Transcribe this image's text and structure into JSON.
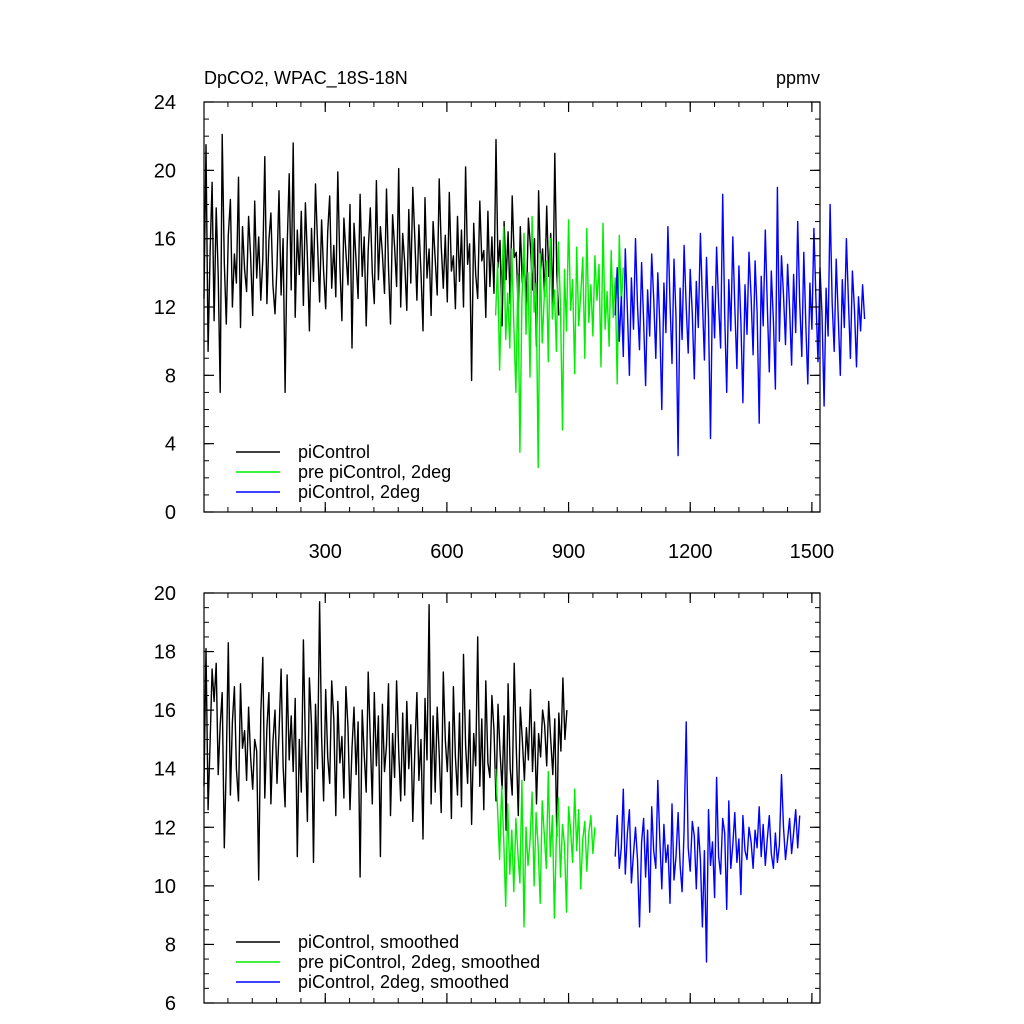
{
  "figure": {
    "title_left": "DpCO2, WPAC_18S-18N",
    "title_right": "ppmv"
  },
  "chart_data": [
    {
      "type": "line",
      "title": "DpCO2, WPAC_18S-18N",
      "units": "ppmv",
      "xlim": [
        1,
        1520
      ],
      "ylim": [
        0,
        24
      ],
      "x_ticks": [
        300,
        600,
        900,
        1200,
        1500
      ],
      "x_tick_labels": [
        "300",
        "600",
        "900",
        "1200",
        "1500"
      ],
      "y_ticks": [
        0,
        4,
        8,
        12,
        16,
        20,
        24
      ],
      "y_tick_labels": [
        "0",
        "4",
        "8",
        "12",
        "16",
        "20",
        "24"
      ],
      "legend_position": "bottom-left",
      "series": [
        {
          "name": "piControl",
          "color": "#000000",
          "x_start": 1,
          "x_step": 5,
          "values": [
            12.5,
            21.5,
            9.4,
            15.2,
            19.3,
            11.2,
            17.8,
            13.9,
            7.0,
            22.1,
            14.6,
            11.0,
            16.2,
            18.3,
            12.0,
            15.1,
            13.4,
            19.6,
            10.8,
            16.7,
            14.2,
            12.9,
            17.3,
            15.0,
            11.5,
            18.2,
            13.7,
            16.1,
            12.4,
            14.8,
            20.8,
            12.2,
            15.9,
            17.5,
            13.3,
            11.6,
            14.4,
            18.8,
            12.7,
            16.0,
            7.0,
            15.4,
            19.8,
            13.0,
            21.6,
            11.4,
            16.5,
            13.9,
            17.6,
            12.1,
            18.1,
            14.9,
            10.6,
            16.6,
            13.5,
            19.2,
            15.8,
            12.3,
            17.1,
            14.1,
            11.9,
            16.4,
            18.5,
            13.1,
            15.6,
            12.6,
            19.9,
            14.4,
            11.2,
            17.2,
            15.2,
            13.3,
            18.0,
            9.6,
            16.9,
            14.7,
            12.5,
            18.6,
            13.8,
            16.1,
            10.9,
            15.3,
            17.8,
            14.0,
            12.2,
            19.4,
            13.6,
            16.7,
            15.1,
            12.8,
            18.9,
            14.3,
            11.0,
            17.4,
            15.5,
            13.2,
            20.1,
            12.0,
            16.3,
            14.6,
            11.8,
            17.7,
            13.4,
            19.0,
            15.9,
            12.4,
            16.8,
            14.0,
            10.6,
            18.4,
            13.7,
            15.4,
            11.5,
            17.0,
            14.8,
            12.7,
            19.5,
            15.6,
            13.1,
            16.2,
            12.3,
            18.7,
            14.1,
            15.0,
            11.9,
            17.3,
            13.5,
            16.5,
            12.0,
            20.2,
            14.5,
            15.7,
            7.7,
            16.9,
            13.9,
            12.5,
            18.2,
            14.7,
            15.3,
            11.4,
            17.6,
            13.2,
            16.1,
            12.8,
            21.8,
            14.3,
            15.9,
            10.9,
            17.0,
            13.6,
            16.4,
            12.2,
            18.5,
            14.9,
            15.2,
            11.7,
            16.7,
            13.4,
            14.6,
            12.1,
            17.2,
            15.5,
            13.0,
            16.0,
            9.7,
            18.8,
            14.2,
            15.4,
            12.6,
            17.9,
            13.8,
            16.3,
            12.0,
            21.0,
            14.0,
            11.5
          ]
        },
        {
          "name": "pre piControl, 2deg",
          "color": "#00ee00",
          "x_start": 720,
          "x_step": 5,
          "values": [
            11.5,
            14.6,
            8.3,
            13.2,
            16.7,
            10.1,
            12.8,
            9.6,
            15.4,
            11.0,
            7.0,
            13.9,
            3.5,
            12.3,
            16.3,
            10.4,
            14.0,
            7.9,
            17.3,
            11.7,
            13.4,
            2.6,
            15.1,
            9.9,
            12.5,
            14.7,
            8.8,
            16.0,
            11.3,
            13.0,
            9.4,
            15.8,
            12.0,
            4.8,
            14.2,
            10.6,
            17.1,
            11.8,
            13.6,
            8.1,
            15.5,
            10.9,
            12.7,
            14.9,
            9.0,
            16.6,
            11.1,
            13.3,
            10.3,
            15.0,
            12.4,
            14.5,
            8.5,
            16.9,
            10.7,
            12.9,
            9.7,
            15.3,
            11.4,
            13.7,
            7.5,
            16.2,
            12.2,
            14.3
          ]
        },
        {
          "name": "piControl, 2deg",
          "color": "#0000ff",
          "x_start": 1015,
          "x_step": 5,
          "values": [
            11.5,
            14.3,
            10.0,
            12.6,
            9.1,
            15.4,
            11.8,
            8.0,
            13.7,
            10.7,
            16.0,
            12.1,
            9.5,
            14.6,
            11.2,
            7.4,
            13.0,
            10.3,
            15.1,
            12.5,
            9.0,
            14.0,
            11.0,
            6.0,
            13.4,
            10.5,
            16.7,
            12.3,
            8.7,
            14.8,
            11.4,
            3.3,
            13.1,
            10.1,
            15.6,
            12.0,
            9.3,
            14.2,
            11.6,
            7.8,
            13.5,
            10.8,
            16.3,
            12.4,
            8.9,
            14.9,
            11.3,
            4.3,
            13.2,
            10.2,
            15.5,
            12.2,
            9.6,
            18.6,
            11.5,
            7.0,
            13.6,
            10.6,
            16.1,
            12.0,
            8.4,
            14.4,
            11.1,
            6.4,
            13.3,
            10.4,
            15.2,
            12.6,
            9.2,
            14.7,
            11.7,
            5.2,
            13.8,
            10.9,
            16.5,
            12.1,
            8.2,
            14.1,
            11.2,
            7.2,
            19.0,
            10.0,
            15.0,
            12.7,
            9.8,
            14.5,
            11.9,
            8.6,
            13.9,
            10.5,
            17.0,
            12.3,
            9.1,
            15.2,
            11.0,
            7.5,
            13.4,
            10.7,
            16.6,
            12.5,
            8.8,
            14.3,
            11.6,
            6.2,
            13.1,
            10.3,
            18.0,
            12.2,
            9.4,
            14.8,
            11.5,
            8.0,
            13.6,
            10.8,
            16.0,
            12.4,
            9.0,
            14.1,
            11.8,
            8.5,
            12.6,
            10.6,
            13.3,
            11.3
          ]
        }
      ]
    },
    {
      "type": "line",
      "xlim": [
        1,
        1520
      ],
      "ylim": [
        6,
        20
      ],
      "x_ticks": [
        300,
        600,
        900,
        1200,
        1500
      ],
      "y_ticks": [
        6,
        8,
        10,
        12,
        14,
        16,
        18,
        20
      ],
      "y_tick_labels": [
        "6",
        "8",
        "10",
        "12",
        "14",
        "16",
        "18",
        "20"
      ],
      "legend_position": "bottom-left",
      "series": [
        {
          "name": "piControl, smoothed",
          "color": "#000000",
          "x_start": 1,
          "x_step": 5,
          "values": [
            13.4,
            18.1,
            12.6,
            14.9,
            17.4,
            16.3,
            17.6,
            13.8,
            15.5,
            16.6,
            11.3,
            14.2,
            18.3,
            13.1,
            15.6,
            16.8,
            14.0,
            12.9,
            16.9,
            14.7,
            15.3,
            13.6,
            16.1,
            14.4,
            13.3,
            15.0,
            14.6,
            10.2,
            15.9,
            17.8,
            13.0,
            15.4,
            16.6,
            12.8,
            14.9,
            16.0,
            13.5,
            15.2,
            17.4,
            14.1,
            12.7,
            17.2,
            14.3,
            15.8,
            13.9,
            16.4,
            11.0,
            15.0,
            13.2,
            18.4,
            14.8,
            12.2,
            17.1,
            15.5,
            10.8,
            16.2,
            14.0,
            19.7,
            15.1,
            12.9,
            16.7,
            14.4,
            13.5,
            17.0,
            15.7,
            12.4,
            16.3,
            14.2,
            15.1,
            13.0,
            16.8,
            15.4,
            12.6,
            14.7,
            16.1,
            13.8,
            15.6,
            10.3,
            16.0,
            14.5,
            13.2,
            17.3,
            15.0,
            12.8,
            16.6,
            14.1,
            15.8,
            11.0,
            16.2,
            13.9,
            14.8,
            16.9,
            12.4,
            15.2,
            13.7,
            17.0,
            14.6,
            12.9,
            15.9,
            13.1,
            16.3,
            14.0,
            15.5,
            12.2,
            14.7,
            16.6,
            13.6,
            15.0,
            11.6,
            16.4,
            14.3,
            19.6,
            12.8,
            15.8,
            13.2,
            16.1,
            14.5,
            12.5,
            17.3,
            15.0,
            13.9,
            15.6,
            12.3,
            16.8,
            14.4,
            13.1,
            15.9,
            12.7,
            17.9,
            14.8,
            13.5,
            16.0,
            12.1,
            15.2,
            14.1,
            18.5,
            13.4,
            15.7,
            12.6,
            17.0,
            14.2,
            13.7,
            16.5,
            15.3,
            12.9,
            16.2,
            14.6,
            13.3,
            15.8,
            11.9,
            16.9,
            14.0,
            13.1,
            17.6,
            14.7,
            12.4,
            16.1,
            15.0,
            13.6,
            15.4,
            14.3,
            16.7,
            13.9,
            15.6,
            12.8,
            15.2,
            14.4,
            16.0,
            15.5,
            14.1,
            16.3,
            15.0,
            13.8,
            15.7,
            11.7,
            15.9,
            14.6,
            17.1,
            15.0,
            16.0
          ]
        },
        {
          "name": "pre piControl, 2deg, smoothed",
          "color": "#00ee00",
          "x_start": 720,
          "x_step": 5,
          "values": [
            14.0,
            12.6,
            10.9,
            13.4,
            11.6,
            9.3,
            12.8,
            10.4,
            11.9,
            9.8,
            12.3,
            11.1,
            10.1,
            13.6,
            8.6,
            12.0,
            10.7,
            11.5,
            13.2,
            10.0,
            12.5,
            11.3,
            9.4,
            12.9,
            11.8,
            10.6,
            13.9,
            11.0,
            12.4,
            8.9,
            11.7,
            13.0,
            10.3,
            12.1,
            11.4,
            9.1,
            12.7,
            11.9,
            10.8,
            13.3,
            11.2,
            12.6,
            9.9,
            11.6,
            12.2,
            10.5,
            11.8,
            12.4,
            11.1,
            12.0
          ]
        },
        {
          "name": "piControl, 2deg, smoothed",
          "color": "#0000ff",
          "x_start": 1015,
          "x_step": 5,
          "values": [
            11.0,
            12.4,
            10.6,
            11.3,
            13.3,
            10.4,
            11.8,
            12.6,
            10.1,
            11.1,
            12.0,
            10.9,
            8.6,
            11.5,
            12.3,
            10.3,
            11.9,
            9.1,
            12.7,
            11.2,
            10.6,
            13.6,
            11.6,
            9.9,
            12.1,
            10.8,
            11.4,
            9.4,
            12.8,
            10.2,
            11.0,
            12.5,
            10.7,
            9.8,
            11.9,
            15.6,
            11.3,
            10.5,
            12.2,
            11.7,
            9.9,
            12.0,
            10.9,
            8.6,
            11.2,
            7.4,
            12.6,
            10.7,
            11.5,
            9.6,
            13.7,
            11.0,
            10.4,
            12.3,
            11.8,
            9.2,
            12.9,
            10.6,
            11.4,
            12.5,
            10.8,
            11.6,
            9.7,
            12.4,
            11.2,
            10.9,
            12.0,
            11.5,
            10.6,
            11.9,
            11.3,
            12.7,
            11.0,
            12.1,
            10.7,
            11.6,
            12.4,
            11.1,
            10.6,
            11.8,
            10.8,
            11.4,
            13.8,
            12.0,
            10.9,
            11.6,
            12.3,
            11.1,
            11.8,
            12.6,
            11.3,
            12.4
          ]
        }
      ]
    }
  ]
}
